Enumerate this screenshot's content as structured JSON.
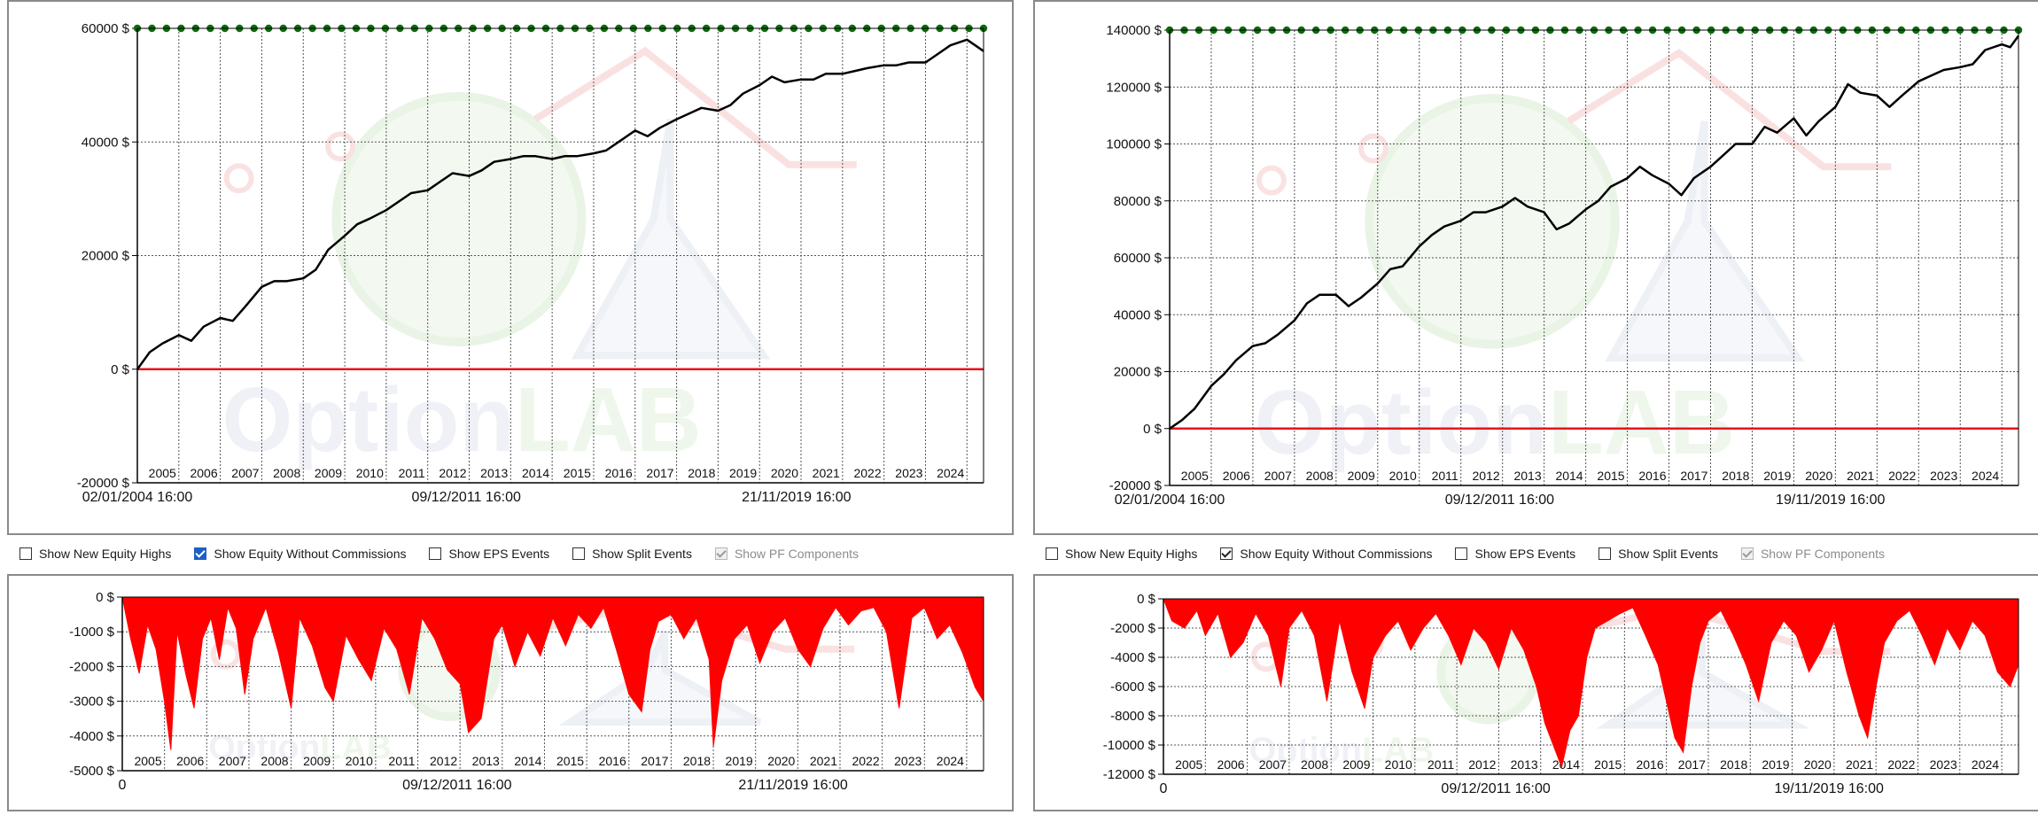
{
  "panels": [
    {
      "id": "left",
      "options": [
        {
          "label": "Show New Equity Highs",
          "state": "unchecked"
        },
        {
          "label": "Show Equity Without Commissions",
          "state": "checked-blue"
        },
        {
          "label": "Show EPS Events",
          "state": "unchecked"
        },
        {
          "label": "Show Split Events",
          "state": "unchecked"
        },
        {
          "label": "Show PF Components",
          "state": "checked-grey"
        }
      ]
    },
    {
      "id": "right",
      "options": [
        {
          "label": "Show New Equity Highs",
          "state": "unchecked"
        },
        {
          "label": "Show Equity Without Commissions",
          "state": "checked-plain"
        },
        {
          "label": "Show EPS Events",
          "state": "unchecked"
        },
        {
          "label": "Show Split Events",
          "state": "unchecked"
        },
        {
          "label": "Show PF Components",
          "state": "checked-grey"
        }
      ]
    }
  ],
  "watermark": {
    "text_a": "Option",
    "text_b": "LAB"
  },
  "chart_data": [
    {
      "type": "line",
      "panel": "left",
      "role": "equity",
      "ylim": [
        -20000,
        60000
      ],
      "y_ticks": [
        {
          "value": 60000,
          "label": "60000 $"
        },
        {
          "value": 40000,
          "label": "40000 $"
        },
        {
          "value": 20000,
          "label": "20000 $"
        },
        {
          "value": 0,
          "label": "0 $"
        },
        {
          "value": -20000,
          "label": "-20000 $"
        }
      ],
      "xlim": [
        2004.0,
        2024.4
      ],
      "year_labels": [
        "2005",
        "2006",
        "2007",
        "2008",
        "2009",
        "2010",
        "2011",
        "2012",
        "2013",
        "2014",
        "2015",
        "2016",
        "2017",
        "2018",
        "2019",
        "2020",
        "2021",
        "2022",
        "2023",
        "2024"
      ],
      "date_labels": [
        {
          "x": 2004.0,
          "label": "02/01/2004 16:00"
        },
        {
          "x": 2011.93,
          "label": "09/12/2011 16:00"
        },
        {
          "x": 2019.89,
          "label": "21/11/2019 16:00"
        }
      ],
      "zero_line_color": "#e8141b",
      "highs_marker_color": "#0b6b0b",
      "highs_level": 60000,
      "line_color": "#000000",
      "series": [
        {
          "x": [
            2004.0,
            2004.3,
            2004.6,
            2005.0,
            2005.3,
            2005.6,
            2006.0,
            2006.3,
            2006.6,
            2007.0,
            2007.3,
            2007.6,
            2008.0,
            2008.3,
            2008.6,
            2009.0,
            2009.3,
            2009.6,
            2010.0,
            2010.3,
            2010.6,
            2011.0,
            2011.3,
            2011.6,
            2012.0,
            2012.3,
            2012.6,
            2013.0,
            2013.3,
            2013.6,
            2014.0,
            2014.3,
            2014.6,
            2015.0,
            2015.3,
            2015.6,
            2016.0,
            2016.3,
            2016.6,
            2017.0,
            2017.3,
            2017.6,
            2018.0,
            2018.3,
            2018.6,
            2019.0,
            2019.3,
            2019.6,
            2020.0,
            2020.3,
            2020.6,
            2021.0,
            2021.3,
            2021.6,
            2022.0,
            2022.3,
            2022.6,
            2023.0,
            2023.3,
            2023.6,
            2024.0,
            2024.2,
            2024.4
          ],
          "y": [
            0,
            3000,
            4500,
            6000,
            5000,
            7500,
            9000,
            8500,
            11000,
            14500,
            15500,
            15500,
            16000,
            17500,
            21000,
            23500,
            25500,
            26500,
            28000,
            29500,
            31000,
            31500,
            33000,
            34500,
            34000,
            35000,
            36500,
            37000,
            37500,
            37500,
            37000,
            37500,
            37500,
            38000,
            38500,
            40000,
            42000,
            41000,
            42500,
            44000,
            45000,
            46000,
            45500,
            46500,
            48500,
            50000,
            51500,
            50500,
            51000,
            51000,
            52000,
            52000,
            52500,
            53000,
            53500,
            53500,
            54000,
            54000,
            55500,
            57000,
            58000,
            57000,
            56000
          ]
        }
      ]
    },
    {
      "type": "area",
      "panel": "left",
      "role": "drawdown",
      "ylim": [
        -5000,
        0
      ],
      "y_ticks": [
        {
          "value": 0,
          "label": "0 $"
        },
        {
          "value": -1000,
          "label": "-1000 $"
        },
        {
          "value": -2000,
          "label": "-2000 $"
        },
        {
          "value": -3000,
          "label": "-3000 $"
        },
        {
          "value": -4000,
          "label": "-4000 $"
        },
        {
          "value": -5000,
          "label": "-5000 $"
        }
      ],
      "xlim": [
        2004.0,
        2024.4
      ],
      "year_labels": [
        "2005",
        "2006",
        "2007",
        "2008",
        "2009",
        "2010",
        "2011",
        "2012",
        "2013",
        "2014",
        "2015",
        "2016",
        "2017",
        "2018",
        "2019",
        "2020",
        "2021",
        "2022",
        "2023",
        "2024"
      ],
      "date_labels": [
        {
          "x": 2004.0,
          "label": "0"
        },
        {
          "x": 2011.93,
          "label": "09/12/2011 16:00"
        },
        {
          "x": 2019.89,
          "label": "21/11/2019 16:00"
        }
      ],
      "fill_color": "#ff0000",
      "series": [
        {
          "x": [
            2004.0,
            2004.2,
            2004.4,
            2004.6,
            2004.8,
            2005.0,
            2005.15,
            2005.3,
            2005.5,
            2005.7,
            2005.9,
            2006.1,
            2006.3,
            2006.5,
            2006.7,
            2006.9,
            2007.1,
            2007.4,
            2007.7,
            2008.0,
            2008.2,
            2008.5,
            2008.8,
            2009.0,
            2009.3,
            2009.6,
            2009.9,
            2010.2,
            2010.5,
            2010.8,
            2011.1,
            2011.4,
            2011.7,
            2012.0,
            2012.2,
            2012.5,
            2012.8,
            2013.0,
            2013.3,
            2013.6,
            2013.9,
            2014.2,
            2014.5,
            2014.8,
            2015.1,
            2015.4,
            2015.7,
            2016.0,
            2016.3,
            2016.5,
            2016.7,
            2017.0,
            2017.3,
            2017.6,
            2017.9,
            2018.0,
            2018.2,
            2018.5,
            2018.8,
            2019.1,
            2019.4,
            2019.7,
            2020.0,
            2020.3,
            2020.6,
            2020.9,
            2021.2,
            2021.5,
            2021.8,
            2022.1,
            2022.4,
            2022.7,
            2023.0,
            2023.3,
            2023.6,
            2023.9,
            2024.2,
            2024.4
          ],
          "y": [
            0,
            -1200,
            -2200,
            -800,
            -1500,
            -3000,
            -4400,
            -1000,
            -2200,
            -3200,
            -1200,
            -600,
            -1800,
            -300,
            -900,
            -2800,
            -1200,
            -300,
            -1600,
            -3200,
            -600,
            -1400,
            -2600,
            -3000,
            -1100,
            -1800,
            -2400,
            -900,
            -1500,
            -2800,
            -600,
            -1200,
            -2100,
            -2500,
            -3900,
            -3500,
            -1200,
            -800,
            -2000,
            -1000,
            -1700,
            -600,
            -1400,
            -500,
            -900,
            -300,
            -1500,
            -2800,
            -3300,
            -1500,
            -700,
            -500,
            -1200,
            -600,
            -1800,
            -4300,
            -2400,
            -1200,
            -800,
            -1900,
            -1000,
            -600,
            -1500,
            -2000,
            -900,
            -300,
            -800,
            -400,
            -300,
            -1000,
            -3200,
            -600,
            -300,
            -1200,
            -800,
            -1600,
            -2600,
            -3000
          ]
        }
      ]
    },
    {
      "type": "line",
      "panel": "right",
      "role": "equity",
      "ylim": [
        -20000,
        140000
      ],
      "y_ticks": [
        {
          "value": 140000,
          "label": "140000 $"
        },
        {
          "value": 120000,
          "label": "120000 $"
        },
        {
          "value": 100000,
          "label": "100000 $"
        },
        {
          "value": 80000,
          "label": "80000 $"
        },
        {
          "value": 60000,
          "label": "60000 $"
        },
        {
          "value": 40000,
          "label": "40000 $"
        },
        {
          "value": 20000,
          "label": "20000 $"
        },
        {
          "value": 0,
          "label": "0 $"
        },
        {
          "value": -20000,
          "label": "-20000 $"
        }
      ],
      "xlim": [
        2004.0,
        2024.4
      ],
      "year_labels": [
        "2005",
        "2006",
        "2007",
        "2008",
        "2009",
        "2010",
        "2011",
        "2012",
        "2013",
        "2014",
        "2015",
        "2016",
        "2017",
        "2018",
        "2019",
        "2020",
        "2021",
        "2022",
        "2023",
        "2024"
      ],
      "date_labels": [
        {
          "x": 2004.0,
          "label": "02/01/2004 16:00"
        },
        {
          "x": 2011.93,
          "label": "09/12/2011 16:00"
        },
        {
          "x": 2019.88,
          "label": "19/11/2019 16:00"
        }
      ],
      "zero_line_color": "#e8141b",
      "highs_marker_color": "#0b6b0b",
      "highs_level": 140000,
      "line_color": "#000000",
      "series": [
        {
          "x": [
            2004.0,
            2004.3,
            2004.6,
            2005.0,
            2005.3,
            2005.6,
            2006.0,
            2006.3,
            2006.6,
            2007.0,
            2007.3,
            2007.6,
            2008.0,
            2008.3,
            2008.6,
            2009.0,
            2009.3,
            2009.6,
            2010.0,
            2010.3,
            2010.6,
            2011.0,
            2011.3,
            2011.6,
            2012.0,
            2012.3,
            2012.6,
            2013.0,
            2013.3,
            2013.6,
            2014.0,
            2014.3,
            2014.6,
            2015.0,
            2015.3,
            2015.6,
            2016.0,
            2016.3,
            2016.6,
            2017.0,
            2017.3,
            2017.6,
            2018.0,
            2018.3,
            2018.6,
            2019.0,
            2019.3,
            2019.6,
            2020.0,
            2020.3,
            2020.6,
            2021.0,
            2021.3,
            2021.6,
            2022.0,
            2022.3,
            2022.6,
            2023.0,
            2023.3,
            2023.6,
            2024.0,
            2024.2,
            2024.4
          ],
          "y": [
            0,
            3000,
            7000,
            15000,
            19000,
            24000,
            29000,
            30000,
            33000,
            38000,
            44000,
            47000,
            47000,
            43000,
            46000,
            51000,
            56000,
            57000,
            64000,
            68000,
            71000,
            73000,
            76000,
            76000,
            78000,
            81000,
            78000,
            76000,
            70000,
            72000,
            77000,
            80000,
            85000,
            88000,
            92000,
            89000,
            86000,
            82000,
            88000,
            92000,
            96000,
            100000,
            100000,
            106000,
            104000,
            109000,
            103000,
            108000,
            113000,
            121000,
            118000,
            117000,
            113000,
            117000,
            122000,
            124000,
            126000,
            127000,
            128000,
            133000,
            135000,
            134000,
            138000
          ]
        }
      ]
    },
    {
      "type": "area",
      "panel": "right",
      "role": "drawdown",
      "ylim": [
        -12000,
        0
      ],
      "y_ticks": [
        {
          "value": 0,
          "label": "0 $"
        },
        {
          "value": -2000,
          "label": "-2000 $"
        },
        {
          "value": -4000,
          "label": "-4000 $"
        },
        {
          "value": -6000,
          "label": "-6000 $"
        },
        {
          "value": -8000,
          "label": "-8000 $"
        },
        {
          "value": -10000,
          "label": "-10000 $"
        },
        {
          "value": -12000,
          "label": "-12000 $"
        }
      ],
      "xlim": [
        2004.0,
        2024.4
      ],
      "year_labels": [
        "2005",
        "2006",
        "2007",
        "2008",
        "2009",
        "2010",
        "2011",
        "2012",
        "2013",
        "2014",
        "2015",
        "2016",
        "2017",
        "2018",
        "2019",
        "2020",
        "2021",
        "2022",
        "2023",
        "2024"
      ],
      "date_labels": [
        {
          "x": 2004.0,
          "label": "0"
        },
        {
          "x": 2011.93,
          "label": "09/12/2011 16:00"
        },
        {
          "x": 2019.88,
          "label": "19/11/2019 16:00"
        }
      ],
      "fill_color": "#ff0000",
      "series": [
        {
          "x": [
            2004.0,
            2004.2,
            2004.5,
            2004.8,
            2005.0,
            2005.3,
            2005.6,
            2005.9,
            2006.2,
            2006.5,
            2006.8,
            2007.0,
            2007.3,
            2007.6,
            2007.9,
            2008.2,
            2008.5,
            2008.8,
            2009.0,
            2009.3,
            2009.6,
            2009.9,
            2010.2,
            2010.5,
            2010.8,
            2011.1,
            2011.4,
            2011.7,
            2012.0,
            2012.3,
            2012.6,
            2012.9,
            2013.1,
            2013.3,
            2013.5,
            2013.7,
            2013.9,
            2014.1,
            2014.3,
            2014.6,
            2014.9,
            2015.2,
            2015.5,
            2015.8,
            2016.0,
            2016.2,
            2016.4,
            2016.6,
            2016.8,
            2017.0,
            2017.3,
            2017.6,
            2017.9,
            2018.2,
            2018.5,
            2018.8,
            2019.1,
            2019.4,
            2019.7,
            2020.0,
            2020.3,
            2020.6,
            2020.8,
            2021.0,
            2021.2,
            2021.5,
            2021.8,
            2022.1,
            2022.4,
            2022.7,
            2023.0,
            2023.3,
            2023.6,
            2023.9,
            2024.2,
            2024.4
          ],
          "y": [
            0,
            -1500,
            -2000,
            -800,
            -2500,
            -1000,
            -4000,
            -3000,
            -1000,
            -2500,
            -6000,
            -2000,
            -800,
            -2500,
            -7000,
            -1500,
            -5000,
            -7500,
            -4000,
            -2500,
            -1500,
            -3500,
            -2000,
            -1000,
            -2500,
            -4500,
            -2000,
            -3000,
            -4800,
            -2000,
            -3500,
            -6000,
            -8500,
            -10000,
            -11500,
            -9000,
            -8000,
            -4000,
            -2000,
            -1500,
            -1000,
            -600,
            -2500,
            -4500,
            -7000,
            -9500,
            -10500,
            -6000,
            -3000,
            -1500,
            -800,
            -2500,
            -4500,
            -7000,
            -3000,
            -1500,
            -2500,
            -5000,
            -3500,
            -1500,
            -5000,
            -8000,
            -9500,
            -6000,
            -3000,
            -1500,
            -800,
            -2500,
            -4500,
            -2000,
            -3500,
            -1500,
            -2500,
            -5000,
            -6000,
            -4500
          ]
        }
      ]
    }
  ]
}
